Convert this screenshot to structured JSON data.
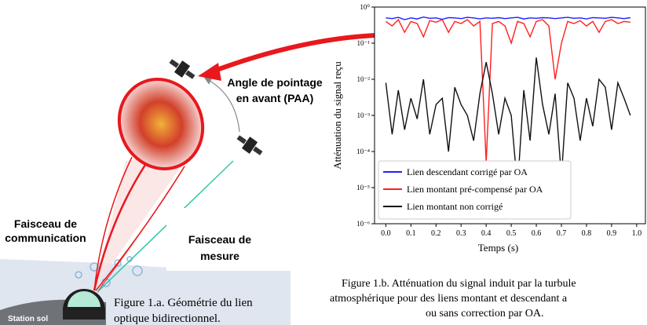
{
  "diagram": {
    "labels": {
      "communication": [
        "Faisceau de",
        "communication"
      ],
      "mesure": [
        "Faisceau de",
        "mesure"
      ],
      "paa": [
        "Angle de pointage",
        "en avant (PAA)"
      ],
      "station": "Station sol"
    }
  },
  "captions": {
    "left": [
      "Figure 1.a. Géométrie du lien",
      "optique bidirectionnel."
    ],
    "right": [
      "Figure 1.b. Atténuation du signal induit par la turbule",
      "atmosphérique pour des liens montant et descendant a",
      "ou sans correction par OA."
    ]
  },
  "chart_data": {
    "type": "line",
    "x_label": "Temps (s)",
    "y_label": "Atténuation du signal reçu",
    "log_y": true,
    "legend": "lower left",
    "xlim": [
      -0.045,
      1.035
    ],
    "ylim": [
      1e-06,
      1
    ],
    "xticks": [
      {
        "value": 0,
        "label": "0.0"
      },
      0.1,
      0.2,
      0.3,
      0.4,
      0.5,
      0.6,
      0.7,
      0.8,
      0.9,
      {
        "value": 1,
        "label": "1.0"
      }
    ],
    "yticks": [
      {
        "value": 1,
        "label": "10⁰"
      },
      {
        "value": 0.1,
        "label": "10⁻¹"
      },
      {
        "value": 0.01,
        "label": "10⁻²"
      },
      {
        "value": 0.001,
        "label": "10⁻³"
      },
      {
        "value": 0.0001,
        "label": "10⁻⁴"
      },
      {
        "value": 1e-05,
        "label": "10⁻⁵"
      },
      {
        "value": 1e-06,
        "label": "10⁻⁶"
      }
    ],
    "x": [
      0,
      0.025,
      0.05,
      0.075,
      0.1,
      0.125,
      0.15,
      0.175,
      0.2,
      0.225,
      0.25,
      0.275,
      0.3,
      0.325,
      0.35,
      0.375,
      0.4,
      0.425,
      0.45,
      0.475,
      0.5,
      0.525,
      0.55,
      0.575,
      0.6,
      0.625,
      0.65,
      0.675,
      0.7,
      0.725,
      0.75,
      0.775,
      0.8,
      0.825,
      0.85,
      0.875,
      0.9,
      0.925,
      0.95,
      0.975
    ],
    "series": [
      {
        "name": "Lien descendant corrigé par OA",
        "color": "#1f1fff",
        "values": [
          0.5,
          0.48,
          0.52,
          0.45,
          0.5,
          0.47,
          0.53,
          0.49,
          0.5,
          0.46,
          0.51,
          0.5,
          0.48,
          0.52,
          0.5,
          0.47,
          0.5,
          0.49,
          0.51,
          0.48,
          0.5,
          0.52,
          0.47,
          0.5,
          0.49,
          0.51,
          0.5,
          0.48,
          0.5,
          0.52,
          0.49,
          0.5,
          0.47,
          0.51,
          0.5,
          0.49,
          0.52,
          0.5,
          0.48,
          0.51
        ]
      },
      {
        "name": "Lien montant pré-compensé par OA",
        "color": "#ff1f1f",
        "values": [
          0.4,
          0.3,
          0.45,
          0.2,
          0.4,
          0.35,
          0.15,
          0.42,
          0.38,
          0.45,
          0.2,
          0.4,
          0.35,
          0.45,
          0.3,
          0.4,
          5e-05,
          0.35,
          0.4,
          0.3,
          0.1,
          0.4,
          0.35,
          0.15,
          0.4,
          0.45,
          0.3,
          0.01,
          0.1,
          0.4,
          0.35,
          0.42,
          0.3,
          0.4,
          0.2,
          0.4,
          0.45,
          0.35,
          0.4,
          0.38
        ]
      },
      {
        "name": "Lien montant non corrigé",
        "color": "#111111",
        "values": [
          0.008,
          0.0003,
          0.005,
          0.0004,
          0.003,
          0.0008,
          0.01,
          0.0003,
          0.002,
          0.003,
          0.0001,
          0.006,
          0.002,
          0.001,
          0.0002,
          0.004,
          0.03,
          0.004,
          0.0003,
          0.003,
          0.001,
          1e-05,
          0.005,
          0.0002,
          0.04,
          0.002,
          0.0003,
          0.004,
          2e-05,
          0.008,
          0.003,
          0.0002,
          0.003,
          0.0005,
          0.01,
          0.006,
          0.0004,
          0.008,
          0.003,
          0.001
        ]
      }
    ]
  }
}
